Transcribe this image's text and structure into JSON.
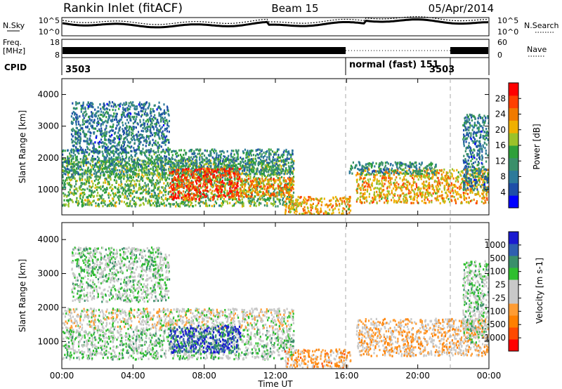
{
  "header": {
    "station": "Rankin Inlet (fitACF)",
    "beam": "Beam 15",
    "date": "05/Apr/2014"
  },
  "noise_panel": {
    "left_label": "N.Sky",
    "right_label": "N.Search",
    "left_ticks": [
      "10^5",
      "10^0"
    ],
    "right_ticks": [
      "10^5",
      "10^0"
    ]
  },
  "freq_panel": {
    "left_label_1": "Freq.",
    "left_label_2": "[MHz]",
    "right_label": "Nave",
    "left_ticks": [
      "18",
      "8"
    ],
    "right_ticks": [
      "60",
      "0"
    ]
  },
  "cpid_panel": {
    "label": "CPID",
    "segments": [
      {
        "text": "3503",
        "start_h": 0,
        "end_h": 16
      },
      {
        "text": "normal (fast)  151",
        "start_h": 16,
        "end_h": 22
      },
      {
        "text": "3503",
        "start_h": 22,
        "end_h": 24
      }
    ]
  },
  "colors": {
    "power_scale": [
      "#0000ff",
      "#1e4ea8",
      "#2d7a9a",
      "#3a8f6a",
      "#2fa03a",
      "#9bc22a",
      "#f0b000",
      "#f07a00",
      "#ff4000",
      "#ff0000"
    ],
    "velocity_scale": [
      "#ff0000",
      "#ff4a00",
      "#ff8000",
      "#ff9c33",
      "#c8c8c8",
      "#c8c8c8",
      "#2fbf2f",
      "#3a8f6a",
      "#2f5fb0",
      "#1a1ad0"
    ]
  },
  "chart_data": [
    {
      "type": "heatmap",
      "name": "power",
      "ylabel": "Slant Range [km]",
      "xlim": [
        0,
        24
      ],
      "ylim": [
        200,
        4500
      ],
      "yticks": [
        "1000",
        "2000",
        "3000",
        "4000"
      ],
      "xticks": [
        "00:00",
        "04:00",
        "08:00",
        "12:00",
        "16:00",
        "20:00",
        "00:00"
      ],
      "colorbar": {
        "label": "Power [dB]",
        "ticks": [
          "28",
          "24",
          "20",
          "16",
          "12",
          "8",
          "4"
        ],
        "range": [
          0,
          30
        ]
      },
      "regions": [
        {
          "t0": 0.0,
          "t1": 13.0,
          "r0": 500,
          "r1": 2000,
          "value": 14
        },
        {
          "t0": 0.0,
          "t1": 13.0,
          "r0": 1500,
          "r1": 2300,
          "value": 10
        },
        {
          "t0": 0.5,
          "t1": 6.0,
          "r0": 2200,
          "r1": 3800,
          "value": 8
        },
        {
          "t0": 6.0,
          "t1": 10.0,
          "r0": 700,
          "r1": 1700,
          "value": 26
        },
        {
          "t0": 10.0,
          "t1": 13.0,
          "r0": 800,
          "r1": 1400,
          "value": 22
        },
        {
          "t0": 12.5,
          "t1": 16.2,
          "r0": 250,
          "r1": 800,
          "value": 20
        },
        {
          "t0": 16.5,
          "t1": 24.0,
          "r0": 600,
          "r1": 1700,
          "value": 20
        },
        {
          "t0": 16.0,
          "t1": 21.0,
          "r0": 1500,
          "r1": 1900,
          "value": 10
        },
        {
          "t0": 22.5,
          "t1": 24.0,
          "r0": 1000,
          "r1": 3400,
          "value": 8
        }
      ]
    },
    {
      "type": "heatmap",
      "name": "velocity",
      "xlabel": "Time UT",
      "ylabel": "Slant Range [km]",
      "xlim": [
        0,
        24
      ],
      "ylim": [
        200,
        4500
      ],
      "yticks": [
        "1000",
        "2000",
        "3000",
        "4000"
      ],
      "xticks": [
        "00:00",
        "04:00",
        "08:00",
        "12:00",
        "16:00",
        "20:00",
        "00:00"
      ],
      "colorbar": {
        "label": "Velocity [m s-1]",
        "ticks": [
          "1000",
          "500",
          "100",
          "25",
          "-25",
          "-100",
          "-500",
          "-1000"
        ],
        "range": [
          -1000,
          1000
        ]
      },
      "regions": [
        {
          "t0": 0.0,
          "t1": 13.0,
          "r0": 500,
          "r1": 1400,
          "value": 150
        },
        {
          "t0": 0.0,
          "t1": 13.0,
          "r0": 1400,
          "r1": 2000,
          "value": 0
        },
        {
          "t0": 0.5,
          "t1": 6.0,
          "r0": 2200,
          "r1": 3800,
          "value": 150
        },
        {
          "t0": 6.0,
          "t1": 10.0,
          "r0": 700,
          "r1": 1500,
          "value": 800
        },
        {
          "t0": 12.5,
          "t1": 16.2,
          "r0": 250,
          "r1": 800,
          "value": -300
        },
        {
          "t0": 16.5,
          "t1": 24.0,
          "r0": 600,
          "r1": 1700,
          "value": -200
        },
        {
          "t0": 22.5,
          "t1": 24.0,
          "r0": 1000,
          "r1": 3400,
          "value": 150
        }
      ]
    }
  ]
}
